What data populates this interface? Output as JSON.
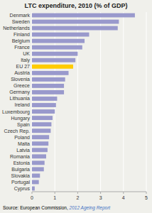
{
  "chart_data": {
    "type": "bar",
    "orientation": "horizontal",
    "title": "LTC expenditure, 2010 (% of GDP)",
    "categories": [
      "Denmark",
      "Sweden",
      "Netherlands",
      "Finland",
      "Belgium",
      "France",
      "UK",
      "Italy",
      "EU 27",
      "Austria",
      "Slovenia",
      "Greece",
      "Germany",
      "Lithuania",
      "Ireland",
      "Luxembourg",
      "Hungary",
      "Spain",
      "Czech Rep.",
      "Poland",
      "Malta",
      "Latvia",
      "Romania",
      "Estonia",
      "Bulgaria",
      "Slovakia",
      "Portugal",
      "Cyprus"
    ],
    "values": [
      4.5,
      3.8,
      3.75,
      2.5,
      2.3,
      2.2,
      2.0,
      1.9,
      1.8,
      1.6,
      1.45,
      1.4,
      1.4,
      1.1,
      1.05,
      1.0,
      0.9,
      0.85,
      0.82,
      0.75,
      0.72,
      0.68,
      0.62,
      0.55,
      0.52,
      0.35,
      0.3,
      0.12
    ],
    "colors": [
      "#9999cc",
      "#9999cc",
      "#9999cc",
      "#9999cc",
      "#9999cc",
      "#9999cc",
      "#9999cc",
      "#9999cc",
      "#ffcc00",
      "#9999cc",
      "#9999cc",
      "#9999cc",
      "#9999cc",
      "#9999cc",
      "#9999cc",
      "#9999cc",
      "#9999cc",
      "#9999cc",
      "#9999cc",
      "#9999cc",
      "#9999cc",
      "#9999cc",
      "#9999cc",
      "#9999cc",
      "#9999cc",
      "#9999cc",
      "#9999cc",
      "#9999cc"
    ],
    "xlim": [
      0,
      5
    ],
    "xticks": [
      0,
      1,
      2,
      3,
      4,
      5
    ],
    "grid": true,
    "annotations": [
      {
        "text": "Source: European Commission, "
      },
      {
        "text": "2012 Ageing Report",
        "color": "#4472c4"
      }
    ]
  }
}
